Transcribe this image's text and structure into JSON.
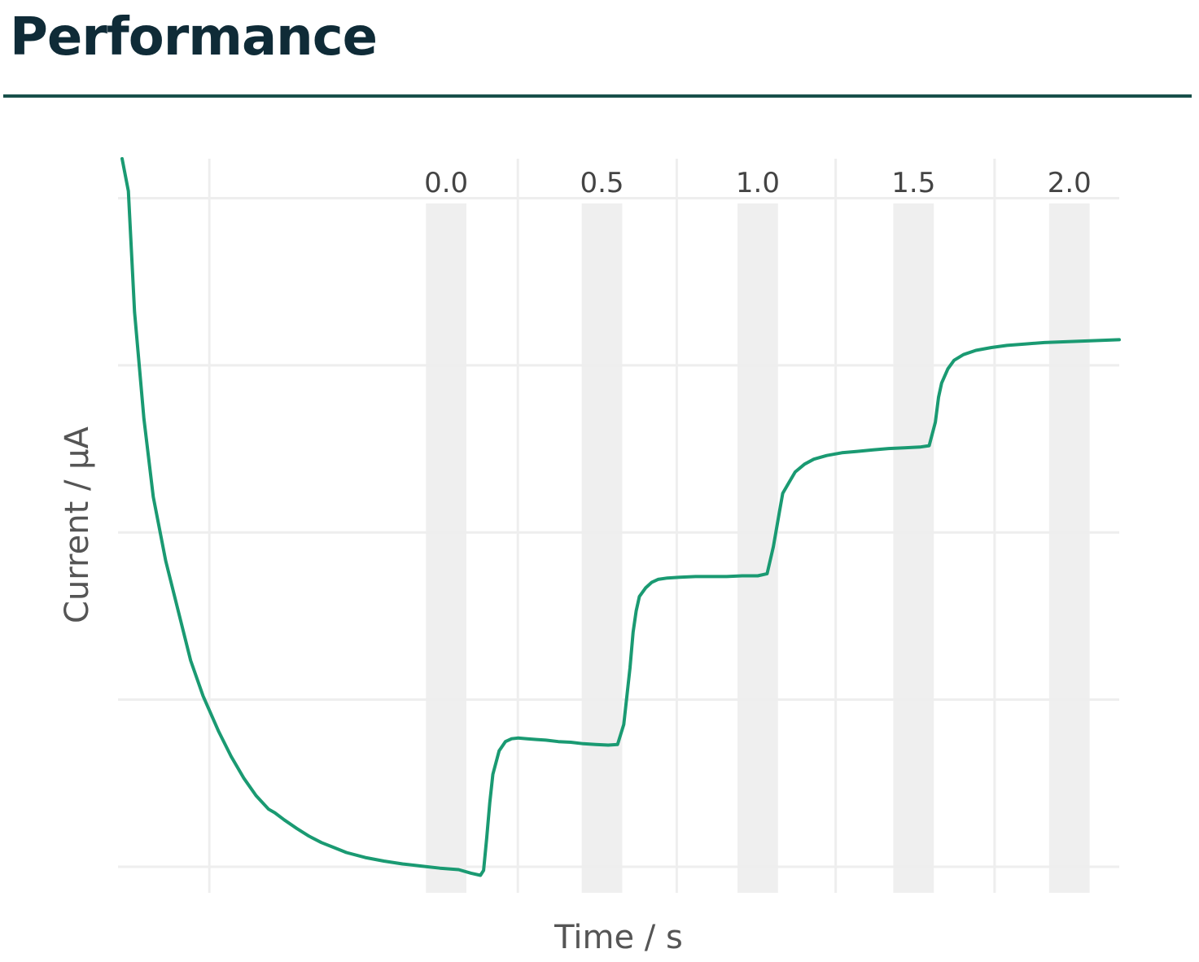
{
  "header": {
    "title": "Performance",
    "rule_color": "#18504a",
    "title_color": "#0f2b37"
  },
  "chart_data": {
    "type": "line",
    "title": "",
    "xlabel": "Time / s",
    "ylabel": "Current / μA",
    "x_tick_labels": [
      "0.0",
      "0.5",
      "1.0",
      "1.5",
      "2.0"
    ],
    "x_ticks": [
      0.0,
      0.5,
      1.0,
      1.5,
      2.0
    ],
    "xlim": [
      -1.04,
      2.16
    ],
    "ylim": [
      0,
      1.0
    ],
    "y_tick_labels_shown": false,
    "grid": true,
    "legend": "none",
    "shaded_bands": [
      {
        "center": 0.0,
        "width": 0.13
      },
      {
        "center": 0.5,
        "width": 0.13
      },
      {
        "center": 1.0,
        "width": 0.13
      },
      {
        "center": 1.5,
        "width": 0.13
      },
      {
        "center": 2.0,
        "width": 0.13
      }
    ],
    "band_color": "#efefef",
    "grid_color": "#eeeeee",
    "series": [
      {
        "color": "#1a9a72",
        "x": [
          -1.04,
          -1.02,
          -1.0,
          -0.97,
          -0.94,
          -0.9,
          -0.86,
          -0.82,
          -0.78,
          -0.73,
          -0.69,
          -0.65,
          -0.61,
          -0.57,
          -0.55,
          -0.52,
          -0.48,
          -0.44,
          -0.4,
          -0.36,
          -0.32,
          -0.26,
          -0.2,
          -0.14,
          -0.08,
          -0.02,
          0.04,
          0.08,
          0.11,
          0.12,
          0.13,
          0.14,
          0.15,
          0.17,
          0.19,
          0.21,
          0.23,
          0.26,
          0.29,
          0.32,
          0.36,
          0.4,
          0.44,
          0.48,
          0.52,
          0.55,
          0.57,
          0.59,
          0.6,
          0.61,
          0.62,
          0.64,
          0.66,
          0.68,
          0.71,
          0.75,
          0.8,
          0.85,
          0.9,
          0.95,
          1.0,
          1.03,
          1.05,
          1.07,
          1.08,
          1.1,
          1.12,
          1.15,
          1.18,
          1.22,
          1.27,
          1.32,
          1.37,
          1.42,
          1.47,
          1.52,
          1.55,
          1.57,
          1.58,
          1.59,
          1.61,
          1.63,
          1.66,
          1.7,
          1.75,
          1.8,
          1.86,
          1.92,
          1.98,
          2.04,
          2.1,
          2.16
        ],
        "y": [
          1.05,
          0.95,
          0.78,
          0.63,
          0.52,
          0.43,
          0.36,
          0.29,
          0.24,
          0.19,
          0.155,
          0.125,
          0.1,
          0.081,
          0.076,
          0.066,
          0.054,
          0.043,
          0.034,
          0.027,
          0.02,
          0.013,
          0.008,
          0.004,
          0.001,
          -0.002,
          -0.004,
          -0.009,
          -0.012,
          -0.005,
          0.04,
          0.09,
          0.13,
          0.163,
          0.176,
          0.18,
          0.181,
          0.18,
          0.179,
          0.178,
          0.176,
          0.175,
          0.173,
          0.172,
          0.171,
          0.172,
          0.2,
          0.28,
          0.33,
          0.36,
          0.38,
          0.392,
          0.4,
          0.404,
          0.406,
          0.407,
          0.408,
          0.408,
          0.408,
          0.409,
          0.409,
          0.412,
          0.45,
          0.5,
          0.525,
          0.54,
          0.555,
          0.566,
          0.573,
          0.578,
          0.582,
          0.584,
          0.586,
          0.588,
          0.589,
          0.59,
          0.592,
          0.625,
          0.66,
          0.68,
          0.7,
          0.712,
          0.72,
          0.726,
          0.73,
          0.733,
          0.735,
          0.737,
          0.738,
          0.739,
          0.74,
          0.741
        ]
      }
    ]
  }
}
